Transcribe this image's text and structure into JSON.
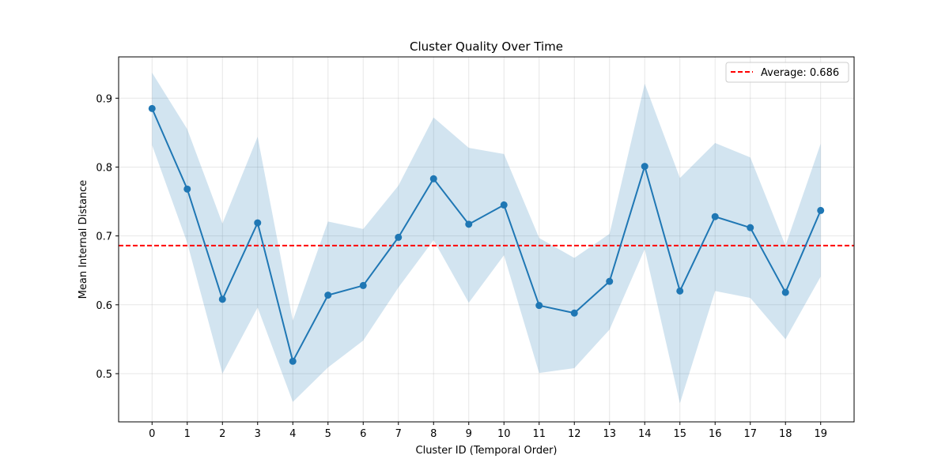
{
  "chart_data": {
    "type": "line",
    "title": "Cluster Quality Over Time",
    "xlabel": "Cluster ID (Temporal Order)",
    "ylabel": "Mean Internal Distance",
    "x": [
      0,
      1,
      2,
      3,
      4,
      5,
      6,
      7,
      8,
      9,
      10,
      11,
      12,
      13,
      14,
      15,
      16,
      17,
      18,
      19
    ],
    "xlim": [
      -0.95,
      19.95
    ],
    "ylim": [
      0.43,
      0.96
    ],
    "xticks": [
      0,
      1,
      2,
      3,
      4,
      5,
      6,
      7,
      8,
      9,
      10,
      11,
      12,
      13,
      14,
      15,
      16,
      17,
      18,
      19
    ],
    "yticks": [
      0.5,
      0.6,
      0.7,
      0.8,
      0.9
    ],
    "ytick_labels": [
      "0.5",
      "0.6",
      "0.7",
      "0.8",
      "0.9"
    ],
    "grid": true,
    "legend_position": "top-right",
    "series": [
      {
        "values": [
          0.885,
          0.768,
          0.608,
          0.719,
          0.518,
          0.614,
          0.628,
          0.698,
          0.783,
          0.717,
          0.745,
          0.599,
          0.588,
          0.634,
          0.801,
          0.62,
          0.728,
          0.712,
          0.618,
          0.737
        ],
        "band_upper": [
          0.937,
          0.855,
          0.718,
          0.844,
          0.577,
          0.721,
          0.71,
          0.773,
          0.872,
          0.828,
          0.819,
          0.697,
          0.668,
          0.703,
          0.921,
          0.784,
          0.835,
          0.814,
          0.686,
          0.834
        ],
        "band_lower": [
          0.832,
          0.69,
          0.5,
          0.596,
          0.459,
          0.509,
          0.548,
          0.625,
          0.694,
          0.603,
          0.672,
          0.501,
          0.508,
          0.564,
          0.681,
          0.457,
          0.62,
          0.61,
          0.55,
          0.641
        ],
        "color": "#1f77b4",
        "band_color": "#1f77b4"
      }
    ],
    "reference_line": {
      "value": 0.686,
      "label": "Average: 0.686",
      "color": "#ff0000",
      "style": "dashed"
    }
  }
}
